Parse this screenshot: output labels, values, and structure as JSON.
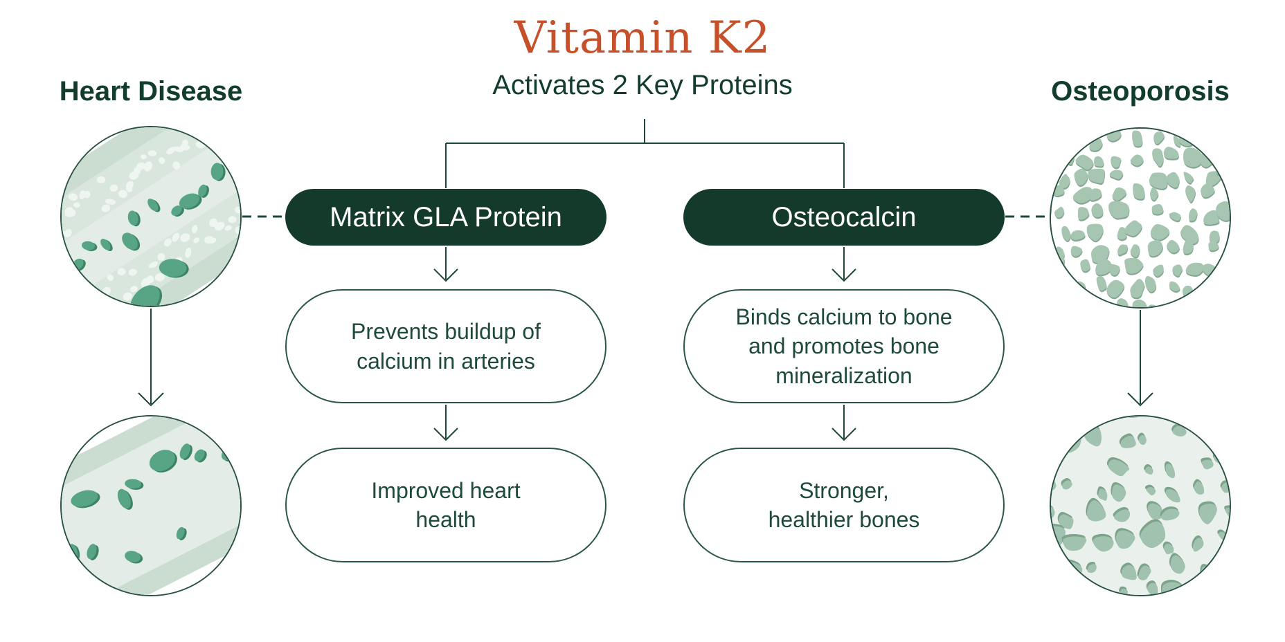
{
  "title": "Vitamin K2",
  "subtitle": "Activates 2 Key Proteins",
  "colors": {
    "accent_orange": "#c5502a",
    "heading_green": "#123c2b",
    "pill_green": "#143a2c",
    "line_green": "#1c4638",
    "box_border_green": "#2b5748",
    "box_text_green": "#1d4a39",
    "sage_green": "#a6c6b2",
    "cell_green": "#57a584"
  },
  "heart_branch": {
    "heading": "Heart Disease",
    "protein_label": "Matrix GLA Protein",
    "effect_text": "Prevents buildup of\ncalcium in arteries",
    "outcome_text": "Improved heart\nhealth"
  },
  "bone_branch": {
    "heading": "Osteoporosis",
    "protein_label": "Osteocalcin",
    "effect_text": "Binds calcium to bone\nand promotes bone\nmineralization",
    "outcome_text": "Stronger,\nhealthier bones"
  }
}
